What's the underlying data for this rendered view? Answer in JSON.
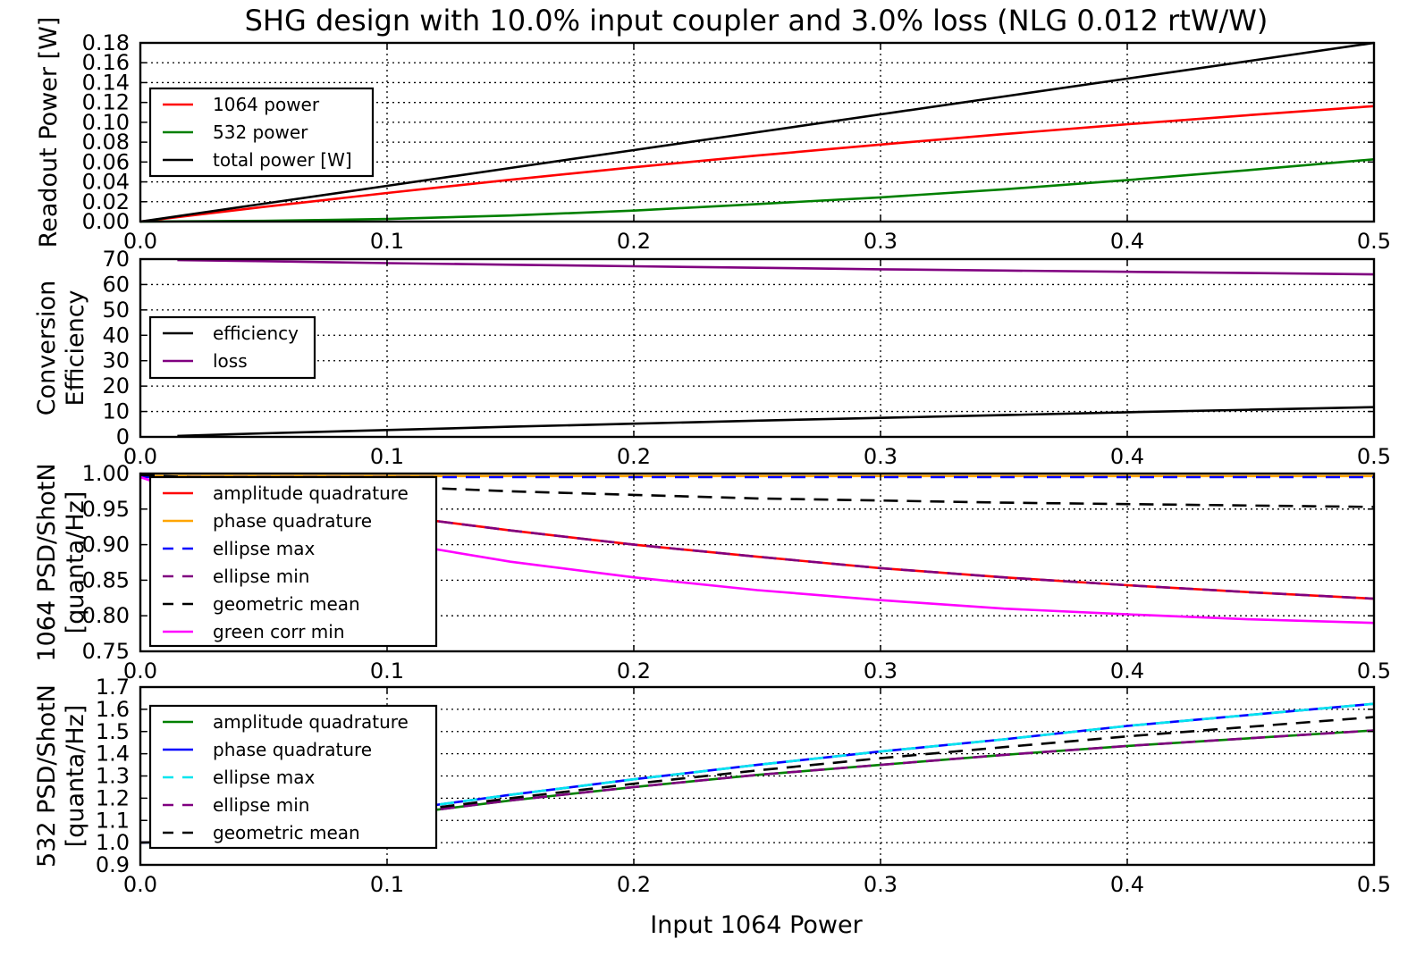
{
  "title": "SHG design with 10.0% input coupler and 3.0% loss (NLG 0.012 rtW/W)",
  "xlabel": "Input 1064 Power",
  "chart_data": [
    {
      "type": "line",
      "ylabel_lines": [
        "Readout Power [W]"
      ],
      "xlim": [
        0,
        0.5
      ],
      "ylim": [
        0,
        0.18
      ],
      "x_ticks": [
        "0.0",
        "0.1",
        "0.2",
        "0.3",
        "0.4",
        "0.5"
      ],
      "y_ticks": [
        "0.00",
        "0.02",
        "0.04",
        "0.06",
        "0.08",
        "0.10",
        "0.12",
        "0.14",
        "0.16",
        "0.18"
      ],
      "grid": true,
      "legend_position": "upper-left",
      "x": [
        0,
        0.05,
        0.1,
        0.15,
        0.2,
        0.25,
        0.3,
        0.35,
        0.4,
        0.45,
        0.5
      ],
      "series": [
        {
          "name": "1064 power",
          "color": "#ff0000",
          "dash": "solid",
          "values": [
            0,
            0.0148,
            0.0288,
            0.0421,
            0.0547,
            0.0665,
            0.0776,
            0.0881,
            0.098,
            0.1074,
            0.1163
          ]
        },
        {
          "name": "532 power",
          "color": "#008000",
          "dash": "solid",
          "values": [
            0,
            0.0007,
            0.0026,
            0.0061,
            0.0111,
            0.0176,
            0.0244,
            0.0325,
            0.0418,
            0.052,
            0.0627
          ]
        },
        {
          "name": "total power [W]",
          "color": "#000000",
          "dash": "solid",
          "values": [
            0,
            0.018,
            0.036,
            0.054,
            0.072,
            0.09,
            0.108,
            0.126,
            0.144,
            0.162,
            0.18
          ]
        }
      ]
    },
    {
      "type": "line",
      "ylabel_lines": [
        "Conversion",
        "Efficiency"
      ],
      "xlim": [
        0,
        0.5
      ],
      "ylim": [
        0,
        70
      ],
      "x_ticks": [
        "0.0",
        "0.1",
        "0.2",
        "0.3",
        "0.4",
        "0.5"
      ],
      "y_ticks": [
        "0",
        "10",
        "20",
        "30",
        "40",
        "50",
        "60",
        "70"
      ],
      "grid": true,
      "legend_position": "center-left",
      "x": [
        0.015,
        0.05,
        0.1,
        0.15,
        0.2,
        0.25,
        0.3,
        0.35,
        0.4,
        0.45,
        0.5
      ],
      "series": [
        {
          "name": "efficiency",
          "color": "#000000",
          "dash": "solid",
          "values": [
            0.4,
            1.4,
            2.7,
            4.0,
            5.2,
            6.4,
            7.5,
            8.6,
            9.7,
            10.7,
            11.7
          ]
        },
        {
          "name": "loss",
          "color": "#800080",
          "dash": "solid",
          "values": [
            69.6,
            69.2,
            68.4,
            67.8,
            67.2,
            66.6,
            66.0,
            65.5,
            65.0,
            64.5,
            64.0
          ]
        }
      ]
    },
    {
      "type": "line",
      "ylabel_lines": [
        "1064 PSD/ShotN",
        "[quanta/Hz]"
      ],
      "xlim": [
        0,
        0.5
      ],
      "ylim": [
        0.75,
        1.0
      ],
      "x_ticks": [
        "0.0",
        "0.1",
        "0.2",
        "0.3",
        "0.4",
        "0.5"
      ],
      "y_ticks": [
        "0.75",
        "0.80",
        "0.85",
        "0.90",
        "0.95",
        "1.00"
      ],
      "grid": true,
      "legend_position": "upper-left",
      "x": [
        0,
        0.05,
        0.1,
        0.15,
        0.2,
        0.25,
        0.3,
        0.35,
        0.4,
        0.45,
        0.5
      ],
      "series": [
        {
          "name": "amplitude quadrature",
          "color": "#ff0000",
          "dash": "solid",
          "values": [
            1.0,
            0.97,
            0.942,
            0.92,
            0.9,
            0.883,
            0.867,
            0.854,
            0.843,
            0.833,
            0.824
          ]
        },
        {
          "name": "phase quadrature",
          "color": "#ffa500",
          "dash": "solid",
          "values": [
            0.9965,
            0.9965,
            0.9965,
            0.9965,
            0.9965,
            0.9965,
            0.9965,
            0.9965,
            0.9965,
            0.9965,
            0.9965
          ]
        },
        {
          "name": "ellipse max",
          "color": "#0000ff",
          "dash": "dashed",
          "values": [
            0.995,
            0.995,
            0.995,
            0.995,
            0.995,
            0.995,
            0.995,
            0.995,
            0.995,
            0.995,
            0.995
          ]
        },
        {
          "name": "ellipse min",
          "color": "#800080",
          "dash": "dashed",
          "values": [
            1.0,
            0.97,
            0.942,
            0.92,
            0.9,
            0.883,
            0.867,
            0.854,
            0.843,
            0.833,
            0.824
          ]
        },
        {
          "name": "geometric mean",
          "color": "#000000",
          "dash": "dashed",
          "values": [
            0.998,
            0.99,
            0.982,
            0.975,
            0.97,
            0.965,
            0.962,
            0.959,
            0.957,
            0.955,
            0.953
          ]
        },
        {
          "name": "green corr min",
          "color": "#ff00ff",
          "dash": "solid",
          "values": [
            0.995,
            0.935,
            0.905,
            0.876,
            0.854,
            0.836,
            0.822,
            0.81,
            0.802,
            0.795,
            0.79
          ]
        }
      ]
    },
    {
      "type": "line",
      "ylabel_lines": [
        "532  PSD/ShotN",
        "[quanta/Hz]"
      ],
      "xlim": [
        0,
        0.5
      ],
      "ylim": [
        0.9,
        1.7
      ],
      "x_ticks": [
        "0.0",
        "0.1",
        "0.2",
        "0.3",
        "0.4",
        "0.5"
      ],
      "y_ticks": [
        "0.9",
        "1.0",
        "1.1",
        "1.2",
        "1.3",
        "1.4",
        "1.5",
        "1.6",
        "1.7"
      ],
      "grid": true,
      "legend_position": "upper-left",
      "x": [
        0,
        0.015,
        0.05,
        0.1,
        0.15,
        0.2,
        0.25,
        0.3,
        0.35,
        0.4,
        0.45,
        0.5
      ],
      "series": [
        {
          "name": "amplitude quadrature",
          "color": "#008000",
          "dash": "solid",
          "values": [
            1.0,
            1.005,
            1.05,
            1.12,
            1.19,
            1.25,
            1.305,
            1.35,
            1.395,
            1.435,
            1.47,
            1.505
          ]
        },
        {
          "name": "phase quadrature",
          "color": "#0000ff",
          "dash": "solid",
          "values": [
            1.0,
            1.005,
            1.055,
            1.14,
            1.215,
            1.285,
            1.35,
            1.41,
            1.465,
            1.525,
            1.575,
            1.625
          ]
        },
        {
          "name": "ellipse max",
          "color": "#00e5ee",
          "dash": "dashed",
          "values": [
            1.0,
            1.005,
            1.055,
            1.14,
            1.215,
            1.285,
            1.35,
            1.41,
            1.465,
            1.525,
            1.575,
            1.625
          ]
        },
        {
          "name": "ellipse min",
          "color": "#800080",
          "dash": "dashed",
          "values": [
            1.0,
            1.005,
            1.05,
            1.12,
            1.19,
            1.25,
            1.305,
            1.35,
            1.395,
            1.435,
            1.47,
            1.505
          ]
        },
        {
          "name": "geometric mean",
          "color": "#000000",
          "dash": "dashed",
          "values": [
            1.0,
            1.005,
            1.052,
            1.13,
            1.2,
            1.265,
            1.325,
            1.38,
            1.43,
            1.478,
            1.522,
            1.565
          ]
        }
      ]
    }
  ]
}
